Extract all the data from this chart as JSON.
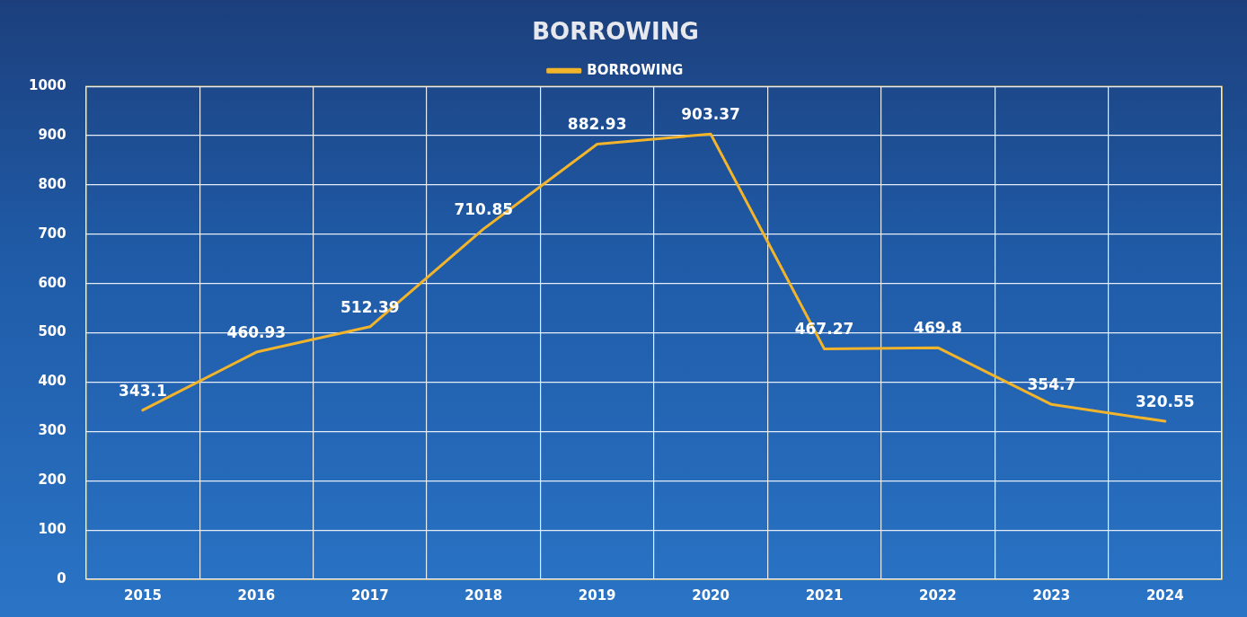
{
  "chart_data": {
    "type": "line",
    "title": "BORROWING",
    "categories": [
      "2015",
      "2016",
      "2017",
      "2018",
      "2019",
      "2020",
      "2021",
      "2022",
      "2023",
      "2024"
    ],
    "series": [
      {
        "name": "BORROWING",
        "color": "#f2b42a",
        "values": [
          343.1,
          460.93,
          512.39,
          710.85,
          882.93,
          903.37,
          467.27,
          469.8,
          354.7,
          320.55
        ]
      }
    ],
    "ylim": [
      0,
      1000
    ],
    "yticks": [
      0,
      100,
      200,
      300,
      400,
      500,
      600,
      700,
      800,
      900,
      1000
    ],
    "grid": true,
    "legend": "top",
    "marker": "none",
    "line_style": "solid",
    "data_labels": true
  }
}
